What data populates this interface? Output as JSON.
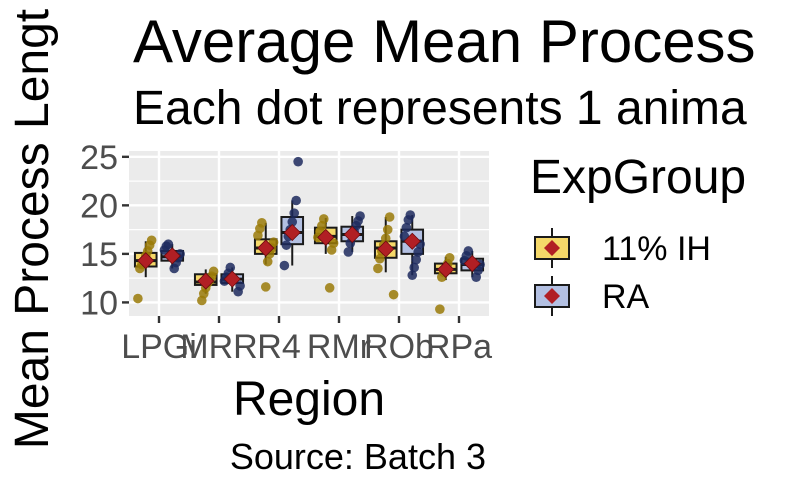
{
  "chart_data": {
    "type": "box",
    "title": "Average Mean Process",
    "subtitle": "Each dot represents 1 anima",
    "xlabel": "Region",
    "ylabel": "Mean Process Lengt",
    "caption": "Source: Batch 3",
    "categories": [
      "LPGi",
      "MRR",
      "R4",
      "RMr",
      "ROb",
      "RPa"
    ],
    "y_ticks": [
      10,
      15,
      20,
      25
    ],
    "ylim": [
      8.6,
      25.6
    ],
    "grid": true,
    "legend": {
      "title": "ExpGroup",
      "position": "right"
    },
    "series": [
      {
        "name": "11% IH",
        "fill": "#f5d869",
        "point_color": "#9a7a08",
        "stats": [
          {
            "q1": 13.7,
            "median": 14.3,
            "q3": 15.1,
            "whisker_low": 12.6,
            "whisker_high": 16.3,
            "mean": 14.3
          },
          {
            "q1": 11.8,
            "median": 12.1,
            "q3": 12.9,
            "whisker_low": 10.9,
            "whisker_high": 13.4,
            "mean": 12.2
          },
          {
            "q1": 15.0,
            "median": 15.6,
            "q3": 16.5,
            "whisker_low": 13.9,
            "whisker_high": 18.2,
            "mean": 15.6
          },
          {
            "q1": 16.1,
            "median": 16.8,
            "q3": 17.7,
            "whisker_low": 15.0,
            "whisker_high": 18.7,
            "mean": 16.7
          },
          {
            "q1": 14.6,
            "median": 15.6,
            "q3": 16.3,
            "whisker_low": 13.1,
            "whisker_high": 18.8,
            "mean": 15.5
          },
          {
            "q1": 13.0,
            "median": 13.4,
            "q3": 14.0,
            "whisker_low": 12.3,
            "whisker_high": 14.7,
            "mean": 13.4
          }
        ],
        "points": [
          [
            10.4,
            13.5,
            13.9,
            14.3,
            14.8,
            15.3,
            15.9,
            16.4
          ],
          [
            10.2,
            10.9,
            11.5,
            12.0,
            12.3,
            12.7,
            13.2
          ],
          [
            11.6,
            14.2,
            15.0,
            15.6,
            16.2,
            16.9,
            17.6,
            18.2
          ],
          [
            11.5,
            15.4,
            16.1,
            16.7,
            17.3,
            17.9,
            18.6
          ],
          [
            10.8,
            13.5,
            14.5,
            15.3,
            15.9,
            16.6,
            17.5,
            18.8
          ],
          [
            9.3,
            12.6,
            13.1,
            13.5,
            14.0,
            14.6
          ]
        ]
      },
      {
        "name": "RA",
        "fill": "#b3c0e2",
        "point_color": "#1d2a5e",
        "stats": [
          {
            "q1": 14.3,
            "median": 14.7,
            "q3": 15.3,
            "whisker_low": 13.5,
            "whisker_high": 16.0,
            "mean": 14.8
          },
          {
            "q1": 12.0,
            "median": 12.4,
            "q3": 12.9,
            "whisker_low": 11.1,
            "whisker_high": 13.6,
            "mean": 12.4
          },
          {
            "q1": 16.0,
            "median": 17.2,
            "q3": 18.8,
            "whisker_low": 13.8,
            "whisker_high": 20.5,
            "mean": 17.2
          },
          {
            "q1": 16.3,
            "median": 17.0,
            "q3": 17.8,
            "whisker_low": 15.2,
            "whisker_high": 18.9,
            "mean": 17.0
          },
          {
            "q1": 15.0,
            "median": 16.3,
            "q3": 17.5,
            "whisker_low": 12.8,
            "whisker_high": 19.0,
            "mean": 16.3
          },
          {
            "q1": 13.3,
            "median": 13.9,
            "q3": 14.5,
            "whisker_low": 12.6,
            "whisker_high": 15.3,
            "mean": 14.0
          }
        ],
        "points": [
          [
            13.5,
            14.1,
            14.6,
            15.0,
            15.4,
            15.8,
            16.0
          ],
          [
            11.1,
            11.7,
            12.2,
            12.6,
            13.0,
            13.6
          ],
          [
            13.8,
            15.9,
            16.8,
            17.5,
            18.3,
            19.2,
            20.5,
            24.5
          ],
          [
            15.2,
            16.1,
            16.8,
            17.3,
            17.9,
            18.4,
            18.9
          ],
          [
            12.8,
            13.6,
            14.4,
            15.2,
            16.0,
            16.8,
            17.7,
            18.5,
            19.0
          ],
          [
            12.6,
            13.3,
            13.9,
            14.3,
            14.8,
            15.3
          ]
        ]
      }
    ]
  }
}
